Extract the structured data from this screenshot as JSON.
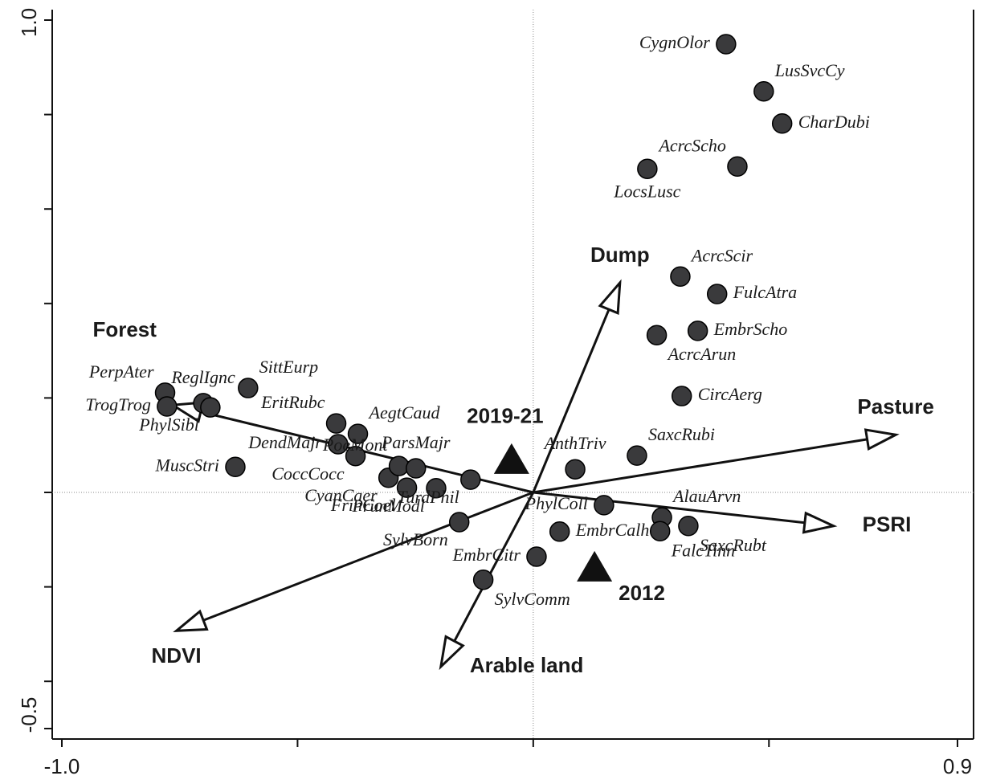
{
  "chart_data": {
    "type": "biplot",
    "xlim": [
      -1.0,
      0.9
    ],
    "ylim": [
      -0.5,
      1.0
    ],
    "xticks": [
      {
        "value": -1,
        "label": "-1.0"
      },
      0.9
    ],
    "xminor_ticks": [
      -0.5,
      0,
      0.5
    ],
    "yticks": [
      {
        "value": 1,
        "label": "1.0"
      },
      -0.5
    ],
    "yminor_ticks": [
      0.8,
      0.6,
      0.4,
      0.2,
      0,
      -0.2,
      -0.4
    ],
    "zero_lines": true,
    "point_color": "#3a3a3c",
    "species": [
      {
        "name": "CygnOlor",
        "x": 0.409,
        "y": 0.949,
        "label_side": "w"
      },
      {
        "name": "LusSvcCy",
        "x": 0.489,
        "y": 0.849,
        "label_side": "ne"
      },
      {
        "name": "CharDubi",
        "x": 0.528,
        "y": 0.781,
        "label_side": "e"
      },
      {
        "name": "AcrcScho",
        "x": 0.433,
        "y": 0.69,
        "label_side": "nw"
      },
      {
        "name": "LocsLusc",
        "x": 0.242,
        "y": 0.685,
        "label_side": "s"
      },
      {
        "name": "AcrcScir",
        "x": 0.312,
        "y": 0.457,
        "label_side": "ne"
      },
      {
        "name": "FulcAtra",
        "x": 0.39,
        "y": 0.42,
        "label_side": "e"
      },
      {
        "name": "EmbrScho",
        "x": 0.349,
        "y": 0.342,
        "label_side": "e"
      },
      {
        "name": "AcrcArun",
        "x": 0.262,
        "y": 0.333,
        "label_side": "se"
      },
      {
        "name": "CircAerg",
        "x": 0.315,
        "y": 0.204,
        "label_side": "e"
      },
      {
        "name": "SaxcRubi",
        "x": 0.22,
        "y": 0.078,
        "label_side": "ne"
      },
      {
        "name": "AnthTriv",
        "x": 0.089,
        "y": 0.049,
        "label_side": "n"
      },
      {
        "name": "PhylColl",
        "x": 0.15,
        "y": -0.027,
        "label_side": "w"
      },
      {
        "name": "AlauArvn",
        "x": 0.273,
        "y": -0.053,
        "label_side": "ne"
      },
      {
        "name": "FalcTinn",
        "x": 0.269,
        "y": -0.082,
        "label_side": "se"
      },
      {
        "name": "SaxcRubt",
        "x": 0.329,
        "y": -0.071,
        "label_side": "se"
      },
      {
        "name": "EmbrCalh",
        "x": 0.056,
        "y": -0.083,
        "label_side": "e"
      },
      {
        "name": "EmbrCitr",
        "x": 0.007,
        "y": -0.136,
        "label_side": "w"
      },
      {
        "name": "PerpAter",
        "x": -0.781,
        "y": 0.211,
        "label_side": "nw"
      },
      {
        "name": "TrogTrog",
        "x": -0.777,
        "y": 0.182,
        "label_side": "w"
      },
      {
        "name": "ReglIgnc",
        "x": -0.7,
        "y": 0.189,
        "label_side": "n"
      },
      {
        "name": "PhylSibl",
        "x": -0.685,
        "y": 0.18,
        "label_side": "sw"
      },
      {
        "name": "SittEurp",
        "x": -0.605,
        "y": 0.221,
        "label_side": "ne"
      },
      {
        "name": "MuscStri",
        "x": -0.632,
        "y": 0.054,
        "label_side": "w"
      },
      {
        "name": "DendMajr",
        "x": -0.414,
        "y": 0.102,
        "label_side": "w"
      },
      {
        "name": "EritRubc",
        "x": -0.418,
        "y": 0.146,
        "label_side": "nw"
      },
      {
        "name": "AegtCaud",
        "x": -0.372,
        "y": 0.124,
        "label_side": "ne"
      },
      {
        "name": "CoccCocc",
        "x": -0.377,
        "y": 0.077,
        "label_side": "sw"
      },
      {
        "name": "CyanCaer",
        "x": -0.307,
        "y": 0.031,
        "label_side": "sw"
      },
      {
        "name": "PoeMont",
        "x": -0.285,
        "y": 0.056,
        "label_side": "nw"
      },
      {
        "name": "ParsMajr",
        "x": -0.249,
        "y": 0.051,
        "label_side": "n"
      },
      {
        "name": "FrinCoel",
        "x": -0.268,
        "y": 0.01,
        "label_side": "sw"
      },
      {
        "name": "PrunModl",
        "x": -0.206,
        "y": 0.009,
        "label_side": "sw"
      },
      {
        "name": "TurdPhil",
        "x": -0.133,
        "y": 0.027,
        "label_side": "sw"
      },
      {
        "name": "SylvBorn",
        "x": -0.157,
        "y": -0.063,
        "label_side": "sw"
      },
      {
        "name": "SylvComm",
        "x": -0.106,
        "y": -0.185,
        "label_side": "se"
      }
    ],
    "periods": [
      {
        "name": "2019-21",
        "x": -0.046,
        "y": 0.07,
        "label_side": "n"
      },
      {
        "name": "2012",
        "x": 0.13,
        "y": -0.158,
        "label_side": "se"
      }
    ],
    "variables": [
      {
        "name": "Dump",
        "x": 0.184,
        "y": 0.444,
        "label_side": "n"
      },
      {
        "name": "Pasture",
        "x": 0.769,
        "y": 0.122,
        "label_side": "n"
      },
      {
        "name": "PSRI",
        "x": 0.637,
        "y": -0.071,
        "label_side": "e"
      },
      {
        "name": "Arable land",
        "x": -0.196,
        "y": -0.369,
        "label_side": "e"
      },
      {
        "name": "NDVI",
        "x": -0.757,
        "y": -0.293,
        "label_side": "s"
      },
      {
        "name": "Forest",
        "x": -0.765,
        "y": 0.185,
        "label_side": "nw"
      }
    ]
  }
}
